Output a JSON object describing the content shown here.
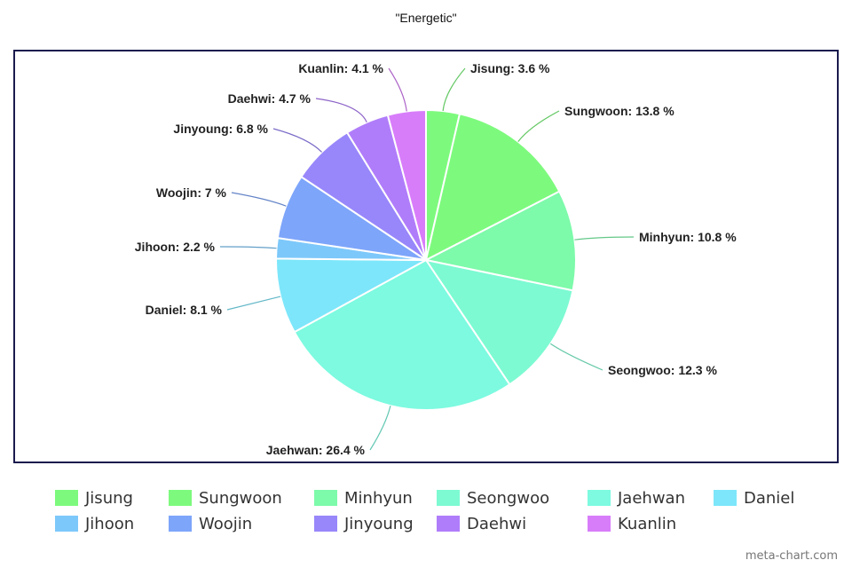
{
  "chart_data": {
    "type": "pie",
    "title": "\"Energetic\"",
    "categories": [
      "Jisung",
      "Sungwoon",
      "Minhyun",
      "Seongwoo",
      "Jaehwan",
      "Daniel",
      "Jihoon",
      "Woojin",
      "Jinyoung",
      "Daehwi",
      "Kuanlin"
    ],
    "values": [
      3.6,
      13.8,
      10.8,
      12.3,
      26.4,
      8.1,
      2.2,
      7,
      6.8,
      4.7,
      4.1
    ],
    "data_labels": [
      "Jisung: 3.6 %",
      "Sungwoon: 13.8 %",
      "Minhyun: 10.8 %",
      "Seongwoo: 12.3 %",
      "Jaehwan: 26.4 %",
      "Daniel: 8.1 %",
      "Jihoon: 2.2 %",
      "Woojin: 7 %",
      "Jinyoung: 6.8 %",
      "Daehwi: 4.7 %",
      "Kuanlin: 4.1 %"
    ],
    "colors": [
      "#7dfa7d",
      "#7dfa7d",
      "#7dfaaa",
      "#7dfad2",
      "#7dfae0",
      "#7de6fa",
      "#7dc8fa",
      "#7da5fa",
      "#9887fa",
      "#b07dfa",
      "#d87dfa"
    ],
    "legend": "bottom"
  },
  "watermark": "meta-chart.com"
}
